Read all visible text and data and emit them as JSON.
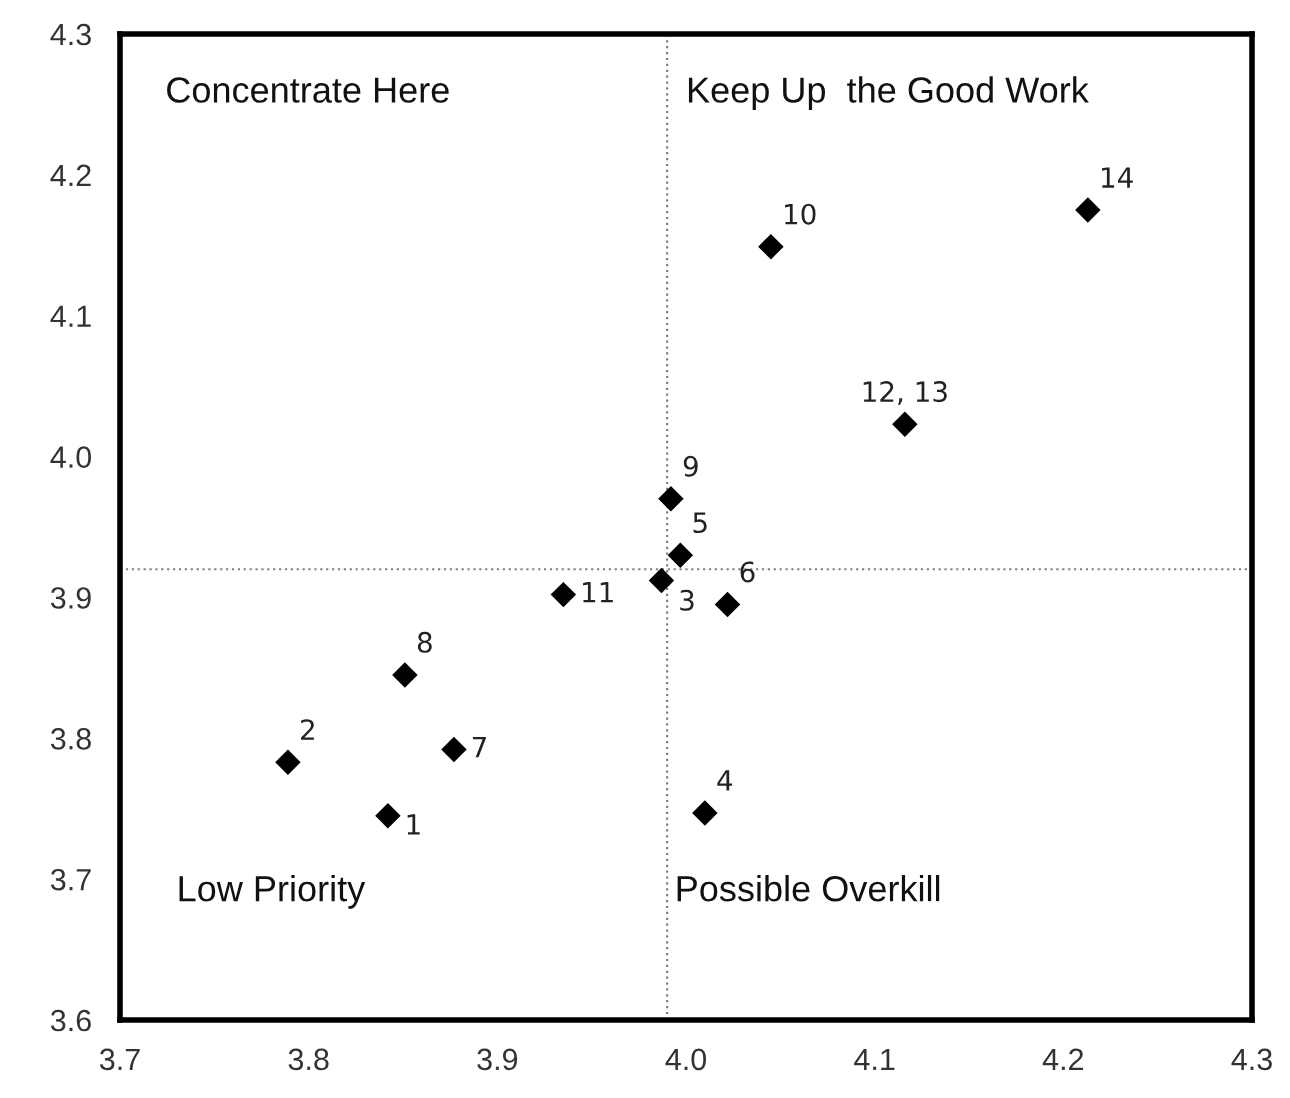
{
  "chart_data": {
    "type": "scatter",
    "marker": "diamond",
    "grid": false,
    "legend": false,
    "xlim": [
      3.7,
      4.3
    ],
    "xticks": [
      {
        "value": 3.7,
        "label": "3.7"
      },
      {
        "value": 3.8,
        "label": "3.8"
      },
      {
        "value": 3.9,
        "label": "3.9"
      },
      {
        "value": 4.0,
        "label": "4.0"
      },
      {
        "value": 4.1,
        "label": "4.1"
      },
      {
        "value": 4.2,
        "label": "4.2"
      },
      {
        "value": 4.3,
        "label": "4.3"
      }
    ],
    "ylim": [
      3.6,
      4.3
    ],
    "yticks": [
      {
        "value": 3.6,
        "label": "3.6"
      },
      {
        "value": 3.7,
        "label": "3.7"
      },
      {
        "value": 3.8,
        "label": "3.8"
      },
      {
        "value": 3.9,
        "label": "3.9"
      },
      {
        "value": 4.0,
        "label": "4.0"
      },
      {
        "value": 4.1,
        "label": "4.1"
      },
      {
        "value": 4.2,
        "label": "4.2"
      },
      {
        "value": 4.3,
        "label": "4.3"
      }
    ],
    "series": [
      {
        "color": "#000000",
        "x": [
          3.842,
          3.789,
          3.987,
          4.01,
          3.997,
          4.022,
          3.877,
          3.851,
          3.992,
          4.045,
          3.935,
          4.116,
          4.213
        ],
        "values": [
          3.745,
          3.783,
          3.912,
          3.747,
          3.93,
          3.895,
          3.792,
          3.845,
          3.97,
          4.149,
          3.902,
          4.023,
          4.175
        ]
      }
    ],
    "ref_lines": [
      {
        "axis": "x",
        "value": 3.99,
        "color": "#808080",
        "line_style": "dotted"
      },
      {
        "axis": "y",
        "value": 3.92,
        "color": "#808080",
        "line_style": "dotted"
      }
    ],
    "annotations": [
      "Concentrate Here",
      "Keep Up  the Good Work",
      "Low Priority",
      "Possible Overkill",
      {
        "text": "1",
        "x": 3.842,
        "y": 3.745
      },
      {
        "text": "2",
        "x": 3.789,
        "y": 3.783
      },
      {
        "text": "3",
        "x": 3.987,
        "y": 3.912
      },
      {
        "text": "4",
        "x": 4.01,
        "y": 3.747
      },
      {
        "text": "5",
        "x": 3.997,
        "y": 3.93
      },
      {
        "text": "6",
        "x": 4.022,
        "y": 3.895
      },
      {
        "text": "7",
        "x": 3.877,
        "y": 3.792
      },
      {
        "text": "8",
        "x": 3.851,
        "y": 3.845
      },
      {
        "text": "9",
        "x": 3.992,
        "y": 3.97
      },
      {
        "text": "10",
        "x": 4.045,
        "y": 4.149
      },
      {
        "text": "11",
        "x": 3.935,
        "y": 3.902
      },
      {
        "text": "12, 13",
        "x": 4.116,
        "y": 4.023
      },
      {
        "text": "14",
        "x": 4.213,
        "y": 4.175
      }
    ]
  }
}
